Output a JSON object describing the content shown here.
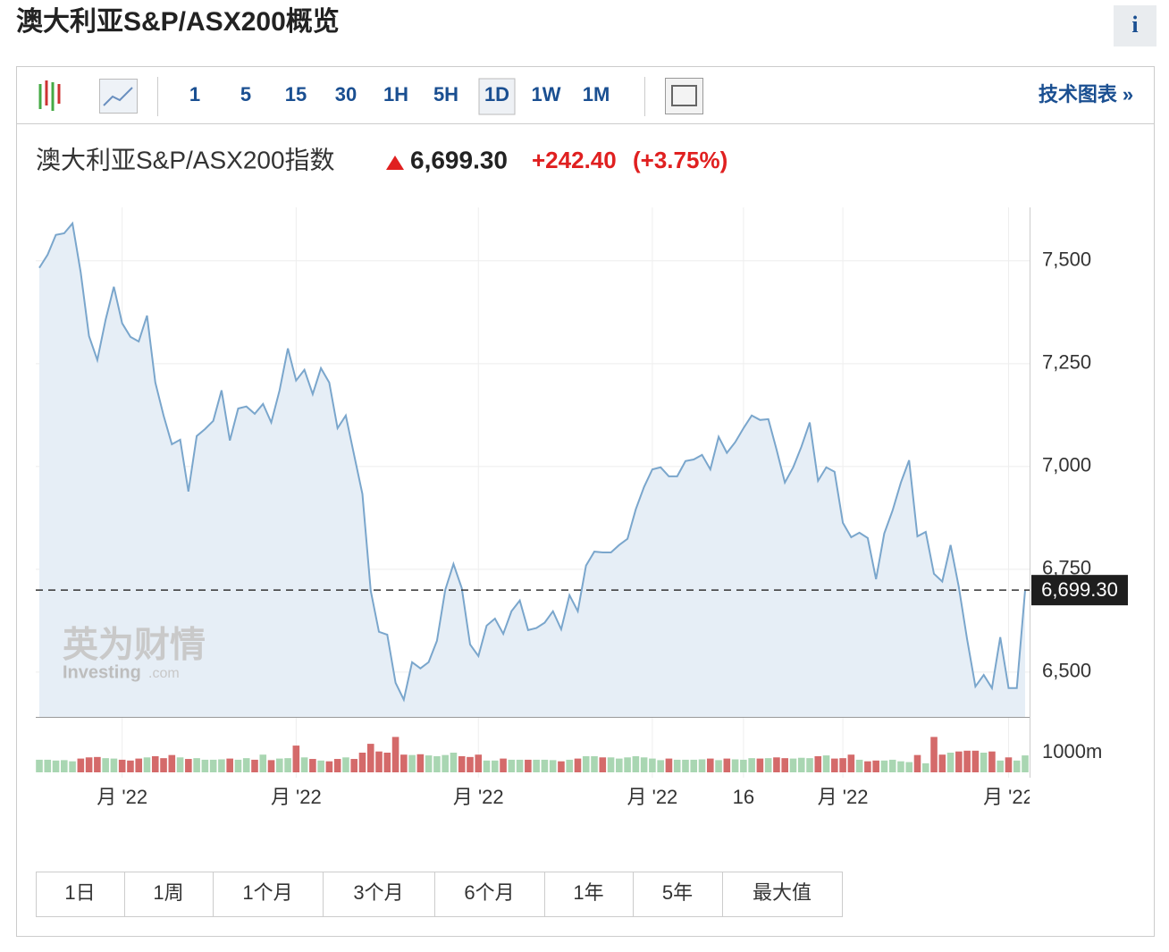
{
  "header": {
    "title": "澳大利亚S&P/ASX200概览",
    "info": "i"
  },
  "toolbar": {
    "intervals": [
      "1",
      "5",
      "15",
      "30",
      "1H",
      "5H",
      "1D",
      "1W",
      "1M"
    ],
    "active": "1D",
    "link": "技术图表 »"
  },
  "quote": {
    "name": "澳大利亚S&P/ASX200指数",
    "price": "6,699.30",
    "change": "+242.40",
    "change_pct": "(+3.75%)"
  },
  "watermark": {
    "cn": "英为财情",
    "en": "Investing",
    "suffix": ".com"
  },
  "chart_data": {
    "type": "line",
    "color": "#7aa6cc",
    "fill": "#e6eef6",
    "grid": true,
    "categories": [
      null,
      null,
      null,
      null,
      null,
      null,
      null,
      null,
      null,
      null,
      "月 '22",
      null,
      null,
      null,
      null,
      null,
      null,
      null,
      null,
      null,
      null,
      null,
      null,
      null,
      null,
      null,
      null,
      null,
      null,
      null,
      null,
      "月 '22",
      null,
      null,
      null,
      null,
      null,
      null,
      null,
      null,
      null,
      null,
      null,
      null,
      null,
      null,
      null,
      null,
      null,
      null,
      null,
      null,
      null,
      "月 '22",
      null,
      null,
      null,
      null,
      null,
      null,
      null,
      null,
      null,
      null,
      null,
      null,
      null,
      null,
      null,
      null,
      null,
      null,
      null,
      null,
      "月 '22",
      null,
      null,
      null,
      null,
      null,
      null,
      null,
      null,
      null,
      null,
      "16",
      null,
      null,
      null,
      null,
      null,
      null,
      null,
      null,
      null,
      null,
      null,
      "月 '22",
      null,
      null,
      null,
      null,
      null,
      null,
      null,
      null,
      null,
      null,
      null,
      null,
      null,
      null,
      null,
      null,
      null,
      null,
      null,
      "月 '22",
      null,
      null
    ],
    "values": [
      7483,
      7515,
      7563,
      7567,
      7591,
      7472,
      7317,
      7259,
      7357,
      7437,
      7348,
      7315,
      7304,
      7367,
      7204,
      7124,
      7054,
      7065,
      6939,
      7074,
      7091,
      7111,
      7185,
      7063,
      7141,
      7146,
      7128,
      7152,
      7107,
      7185,
      7287,
      7209,
      7235,
      7176,
      7239,
      7204,
      7093,
      7124,
      7028,
      6933,
      6698,
      6598,
      6591,
      6474,
      6433,
      6524,
      6509,
      6524,
      6576,
      6700,
      6763,
      6704,
      6567,
      6539,
      6613,
      6630,
      6593,
      6648,
      6674,
      6602,
      6607,
      6620,
      6648,
      6604,
      6687,
      6648,
      6759,
      6793,
      6791,
      6791,
      6809,
      6824,
      6896,
      6950,
      6993,
      6998,
      6976,
      6976,
      7013,
      7017,
      7028,
      6993,
      7072,
      7033,
      7059,
      7093,
      7124,
      7113,
      7115,
      7041,
      6961,
      6998,
      7048,
      7107,
      6965,
      6998,
      6987,
      6863,
      6828,
      6839,
      6826,
      6726,
      6837,
      6893,
      6961,
      7015,
      6830,
      6841,
      6739,
      6720,
      6809,
      6707,
      6580,
      6465,
      6493,
      6461,
      6585,
      6461,
      6461,
      6699.3
    ],
    "last_label": "6,699.30",
    "ylim": [
      6391,
      7630
    ],
    "yticks": [
      {
        "value": 6500,
        "label": "6,500"
      },
      {
        "value": 6750,
        "label": "6,750"
      },
      {
        "value": 7000,
        "label": "7,000"
      },
      {
        "value": 7250,
        "label": "7,250"
      },
      {
        "value": 7500,
        "label": "7,500"
      }
    ],
    "volume": {
      "values": [
        640,
        640,
        600,
        620,
        560,
        700,
        760,
        780,
        720,
        700,
        640,
        600,
        700,
        760,
        820,
        720,
        880,
        760,
        680,
        720,
        640,
        640,
        660,
        700,
        640,
        720,
        640,
        900,
        620,
        700,
        720,
        1360,
        760,
        680,
        600,
        560,
        680,
        760,
        680,
        1000,
        1450,
        1060,
        1000,
        1800,
        900,
        880,
        920,
        860,
        820,
        880,
        1000,
        820,
        780,
        900,
        600,
        600,
        700,
        640,
        640,
        640,
        640,
        640,
        620,
        560,
        640,
        700,
        820,
        820,
        760,
        760,
        700,
        760,
        820,
        760,
        700,
        620,
        700,
        640,
        640,
        640,
        660,
        700,
        620,
        700,
        660,
        640,
        720,
        700,
        720,
        760,
        720,
        700,
        740,
        720,
        820,
        860,
        700,
        720,
        900,
        640,
        560,
        600,
        600,
        640,
        560,
        520,
        880,
        460,
        1800,
        900,
        1000,
        1060,
        1100,
        1100,
        1000,
        1060,
        600,
        760,
        600,
        860
      ],
      "up_color": "#a9d6b2",
      "down_color": "#d46a6a",
      "ylim": [
        0,
        2000
      ],
      "yticks": [
        {
          "value": 1000,
          "label": "1000m"
        }
      ]
    }
  },
  "range_buttons": [
    "1日",
    "1周",
    "1个月",
    "3个月",
    "6个月",
    "1年",
    "5年",
    "最大值"
  ]
}
